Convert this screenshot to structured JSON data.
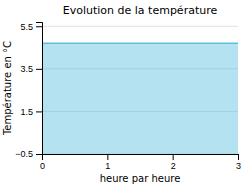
{
  "chart_data": {
    "type": "area",
    "title": "Evolution de la température",
    "xlabel": "heure par heure",
    "ylabel": "Température en °C",
    "x": [
      0,
      3
    ],
    "values": [
      4.7,
      4.7
    ],
    "color": "#5bbfde",
    "xlim": [
      0,
      3
    ],
    "xticks": [
      0,
      1,
      2,
      3
    ],
    "ylim": [
      -0.5,
      5.7
    ],
    "yticks": [
      {
        "value": -0.5,
        "label": "−0.5"
      },
      1.5,
      3.5,
      5.5
    ],
    "grid": true
  }
}
